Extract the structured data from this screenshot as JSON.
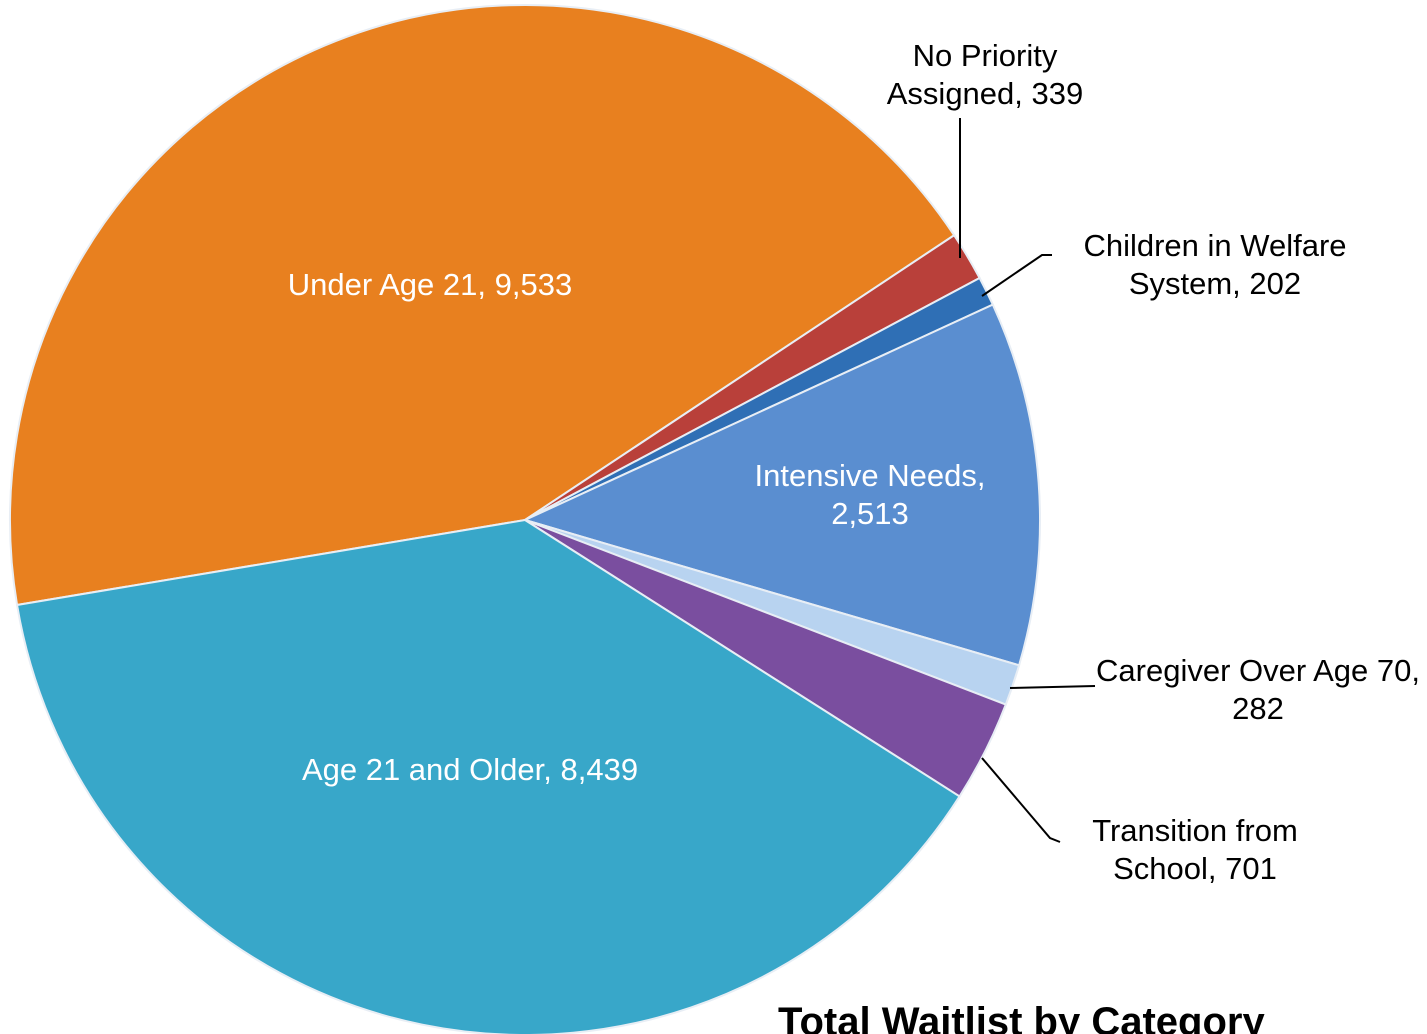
{
  "chart_data": {
    "type": "pie",
    "title": "Total Waitlist by Category",
    "categories": [
      "Under Age 21,",
      "No Priority Assigned,",
      "Children in Welfare System,",
      "Intensive Needs,",
      "Caregiver Over Age 70,",
      "Transition from School,",
      "Age 21 and Older,"
    ],
    "values": [
      9533,
      339,
      202,
      2513,
      282,
      701,
      8439
    ],
    "value_labels": [
      "9,533",
      "339",
      "202",
      "2,513",
      "282",
      "701",
      "8,439"
    ],
    "colors": [
      "#e8801f",
      "#b9403a",
      "#2f6fb5",
      "#5a8ed0",
      "#b8d3f0",
      "#7a4e9f",
      "#38a7c9"
    ]
  }
}
